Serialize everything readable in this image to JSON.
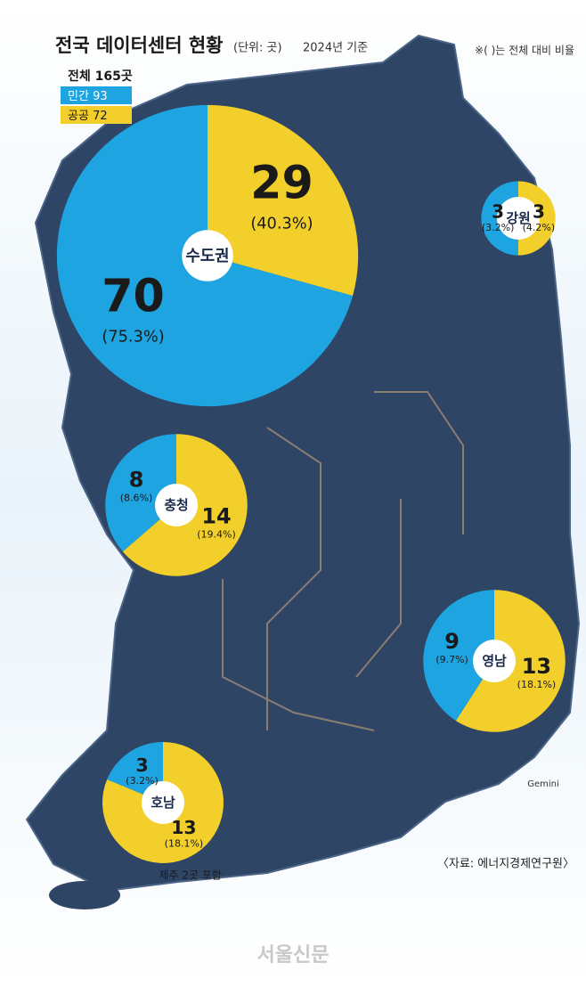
{
  "header": {
    "title": "전국 데이터센터 현황",
    "unit": "(단위: 곳)",
    "date": "2024년 기준",
    "note": "※( )는 전체 대비 비율"
  },
  "legend": {
    "total": "전체 165곳",
    "items": [
      {
        "name": "민간",
        "value": 93,
        "color": "#1ea4e0"
      },
      {
        "name": "공공",
        "value": 72,
        "color": "#f2cf2a"
      }
    ]
  },
  "chart_data": [
    {
      "type": "pie",
      "title": "수도권",
      "categories": [
        "민간",
        "공공"
      ],
      "values": [
        70,
        29
      ],
      "share_labels": [
        "(75.3%)",
        "(40.3%)"
      ]
    },
    {
      "type": "pie",
      "title": "강원",
      "categories": [
        "민간",
        "공공"
      ],
      "values": [
        3,
        3
      ],
      "share_labels": [
        "(3.2%)",
        "(4.2%)"
      ]
    },
    {
      "type": "pie",
      "title": "충청",
      "categories": [
        "민간",
        "공공"
      ],
      "values": [
        8,
        14
      ],
      "share_labels": [
        "(8.6%)",
        "(19.4%)"
      ]
    },
    {
      "type": "pie",
      "title": "영남",
      "categories": [
        "민간",
        "공공"
      ],
      "values": [
        9,
        13
      ],
      "share_labels": [
        "(9.7%)",
        "(18.1%)"
      ]
    },
    {
      "type": "pie",
      "title": "호남",
      "categories": [
        "민간",
        "공공"
      ],
      "values": [
        3,
        13
      ],
      "share_labels": [
        "(3.2%)",
        "(18.1%)"
      ],
      "note": "제주 2곳 포함"
    }
  ],
  "footer": {
    "credit": "Gemini",
    "source": "〈자료: 에너지경제연구원〉",
    "logo": "서울신문"
  }
}
